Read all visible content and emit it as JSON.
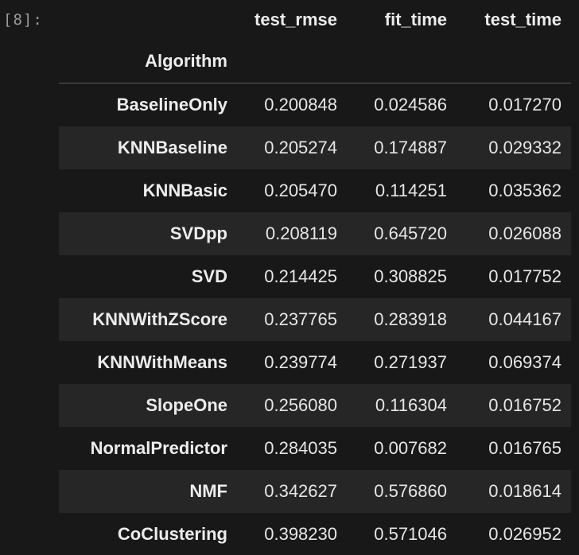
{
  "cell": {
    "prompt": "[8]:"
  },
  "table": {
    "columns": [
      "test_rmse",
      "fit_time",
      "test_time"
    ],
    "index_name": "Algorithm",
    "rows": [
      {
        "name": "BaselineOnly",
        "test_rmse": "0.200848",
        "fit_time": "0.024586",
        "test_time": "0.017270"
      },
      {
        "name": "KNNBaseline",
        "test_rmse": "0.205274",
        "fit_time": "0.174887",
        "test_time": "0.029332"
      },
      {
        "name": "KNNBasic",
        "test_rmse": "0.205470",
        "fit_time": "0.114251",
        "test_time": "0.035362"
      },
      {
        "name": "SVDpp",
        "test_rmse": "0.208119",
        "fit_time": "0.645720",
        "test_time": "0.026088"
      },
      {
        "name": "SVD",
        "test_rmse": "0.214425",
        "fit_time": "0.308825",
        "test_time": "0.017752"
      },
      {
        "name": "KNNWithZScore",
        "test_rmse": "0.237765",
        "fit_time": "0.283918",
        "test_time": "0.044167"
      },
      {
        "name": "KNNWithMeans",
        "test_rmse": "0.239774",
        "fit_time": "0.271937",
        "test_time": "0.069374"
      },
      {
        "name": "SlopeOne",
        "test_rmse": "0.256080",
        "fit_time": "0.116304",
        "test_time": "0.016752"
      },
      {
        "name": "NormalPredictor",
        "test_rmse": "0.284035",
        "fit_time": "0.007682",
        "test_time": "0.016765"
      },
      {
        "name": "NMF",
        "test_rmse": "0.342627",
        "fit_time": "0.576860",
        "test_time": "0.018614"
      },
      {
        "name": "CoClustering",
        "test_rmse": "0.398230",
        "fit_time": "0.571046",
        "test_time": "0.026952"
      }
    ]
  },
  "colors": {
    "background": "#181818",
    "stripe": "#262626",
    "text": "#e6e6e6"
  }
}
